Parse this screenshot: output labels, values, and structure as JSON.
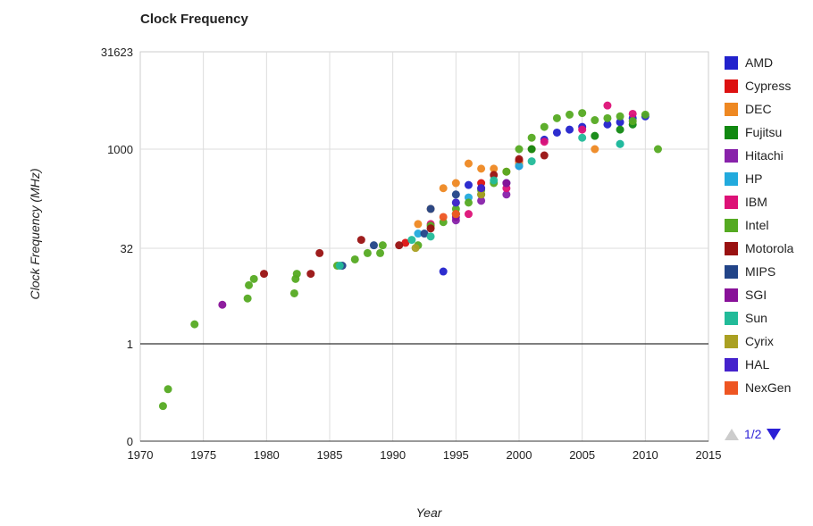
{
  "chart_data": {
    "type": "scatter",
    "title": "Clock Frequency",
    "xlabel": "Year",
    "ylabel": "Clock Frequency (MHz)",
    "x_range": [
      1970,
      2015
    ],
    "x_ticks": [
      "1970",
      "1975",
      "1980",
      "1985",
      "1990",
      "1995",
      "2000",
      "2005",
      "2010",
      "2015"
    ],
    "y_scale": "log (labeled at 0, 1, 32, 1000, 31623)",
    "y_ticks": [
      "0",
      "1",
      "32",
      "1000",
      "31623"
    ],
    "grid": true,
    "legend_position": "right",
    "legend_page": "1/2",
    "series": [
      {
        "name": "AMD",
        "color": "#2222cc",
        "points": [
          [
            1994,
            13
          ],
          [
            1996,
            280
          ],
          [
            2000,
            550
          ],
          [
            2002,
            1400
          ],
          [
            2003,
            1800
          ],
          [
            2004,
            2000
          ],
          [
            2005,
            2200
          ],
          [
            2007,
            2400
          ],
          [
            2008,
            2600
          ],
          [
            2009,
            3000
          ],
          [
            2010,
            3200
          ]
        ]
      },
      {
        "name": "Cypress",
        "color": "#dd1111",
        "points": [
          [
            1991,
            36
          ],
          [
            1997,
            300
          ],
          [
            2000,
            650
          ]
        ]
      },
      {
        "name": "DEC",
        "color": "#ee8822",
        "points": [
          [
            1992,
            70
          ],
          [
            1993,
            120
          ],
          [
            1994,
            250
          ],
          [
            1995,
            300
          ],
          [
            1996,
            600
          ],
          [
            1997,
            500
          ],
          [
            1998,
            500
          ],
          [
            1999,
            450
          ],
          [
            2000,
            600
          ],
          [
            2001,
            1000
          ],
          [
            2006,
            1000
          ]
        ]
      },
      {
        "name": "Fujitsu",
        "color": "#118811",
        "points": [
          [
            1995,
            100
          ],
          [
            1997,
            200
          ],
          [
            2001,
            1000
          ],
          [
            2006,
            1600
          ],
          [
            2008,
            2000
          ],
          [
            2009,
            2400
          ]
        ]
      },
      {
        "name": "Hitachi",
        "color": "#8822aa",
        "points": [
          [
            1995,
            80
          ],
          [
            1997,
            160
          ],
          [
            1999,
            200
          ]
        ]
      },
      {
        "name": "HP",
        "color": "#22aadd",
        "points": [
          [
            1992,
            50
          ],
          [
            1995,
            100
          ],
          [
            1996,
            180
          ],
          [
            2000,
            550
          ],
          [
            2008,
            1200
          ]
        ]
      },
      {
        "name": "IBM",
        "color": "#dd1177",
        "points": [
          [
            1993,
            70
          ],
          [
            1996,
            100
          ],
          [
            1999,
            250
          ],
          [
            2002,
            1300
          ],
          [
            2005,
            2000
          ],
          [
            2007,
            4700
          ],
          [
            2009,
            3500
          ]
        ]
      },
      {
        "name": "Intel",
        "color": "#55aa22",
        "points": [
          [
            1971.8,
            0.11
          ],
          [
            1972.2,
            0.2
          ],
          [
            1974.3,
            2.0
          ],
          [
            1978.5,
            5
          ],
          [
            1978.6,
            8
          ],
          [
            1979,
            10
          ],
          [
            1982.2,
            6
          ],
          [
            1982.3,
            10
          ],
          [
            1982.4,
            12
          ],
          [
            1985.6,
            16
          ],
          [
            1987,
            20
          ],
          [
            1988,
            25
          ],
          [
            1989,
            25
          ],
          [
            1989.2,
            33
          ],
          [
            1992,
            33
          ],
          [
            1993,
            66
          ],
          [
            1994,
            75
          ],
          [
            1995,
            120
          ],
          [
            1996,
            150
          ],
          [
            1997,
            233
          ],
          [
            1998,
            300
          ],
          [
            1999,
            450
          ],
          [
            2000,
            1000
          ],
          [
            2001,
            1500
          ],
          [
            2002,
            2200
          ],
          [
            2003,
            3000
          ],
          [
            2004,
            3400
          ],
          [
            2005,
            3600
          ],
          [
            2006,
            2800
          ],
          [
            2007,
            3000
          ],
          [
            2008,
            3200
          ],
          [
            2009,
            2700
          ],
          [
            2010,
            3400
          ],
          [
            2011,
            1000
          ]
        ]
      },
      {
        "name": "Motorola",
        "color": "#991111",
        "points": [
          [
            1979.8,
            12
          ],
          [
            1983.5,
            12
          ],
          [
            1984.2,
            25
          ],
          [
            1987.5,
            40
          ],
          [
            1990.5,
            33
          ],
          [
            1993,
            60
          ],
          [
            1995,
            100
          ],
          [
            1998,
            400
          ],
          [
            2000,
            700
          ],
          [
            2002,
            800
          ]
        ]
      },
      {
        "name": "MIPS",
        "color": "#224488",
        "points": [
          [
            1986,
            16
          ],
          [
            1988.5,
            33
          ],
          [
            1992.5,
            50
          ],
          [
            1993,
            120
          ],
          [
            1995,
            200
          ],
          [
            1997,
            250
          ],
          [
            1999,
            300
          ]
        ]
      },
      {
        "name": "SGI",
        "color": "#881199",
        "points": [
          [
            1976.5,
            4
          ],
          [
            1995,
            90
          ],
          [
            1999,
            300
          ]
        ]
      },
      {
        "name": "Sun",
        "color": "#22bb99",
        "points": [
          [
            1985.8,
            16
          ],
          [
            1991.5,
            40
          ],
          [
            1993,
            45
          ],
          [
            1995,
            150
          ],
          [
            1998,
            330
          ],
          [
            2001,
            650
          ],
          [
            2005,
            1500
          ],
          [
            2008,
            1200
          ]
        ]
      },
      {
        "name": "Cyrix",
        "color": "#aaa022",
        "points": [
          [
            1991.8,
            30
          ],
          [
            1995,
            100
          ],
          [
            1997,
            200
          ]
        ]
      },
      {
        "name": "HAL",
        "color": "#4422cc",
        "points": [
          [
            1995,
            150
          ],
          [
            1997,
            250
          ]
        ]
      },
      {
        "name": "NexGen",
        "color": "#ee5522",
        "points": [
          [
            1994,
            90
          ],
          [
            1995,
            100
          ]
        ]
      }
    ]
  }
}
